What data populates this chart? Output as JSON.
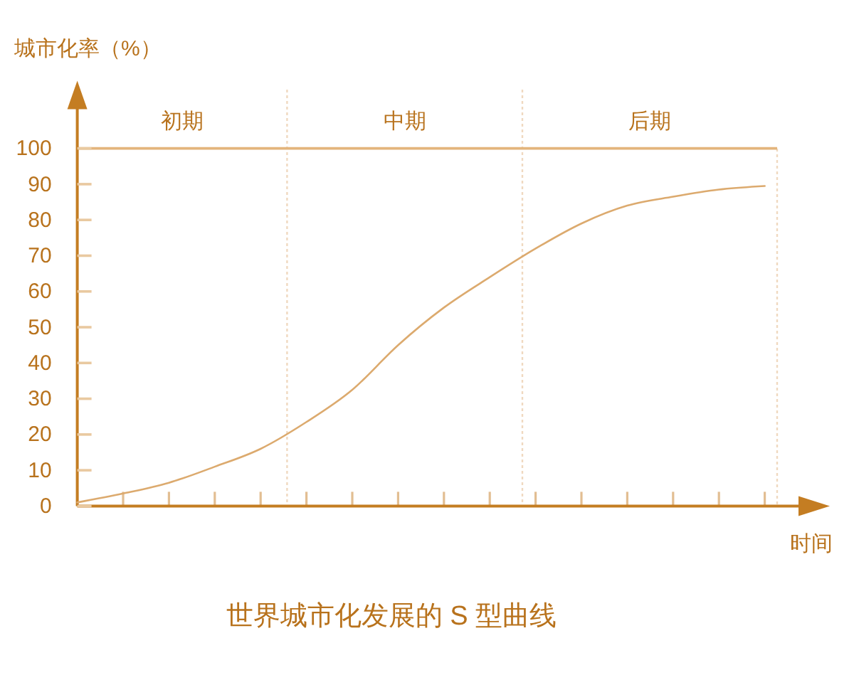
{
  "chart_data": {
    "type": "line",
    "title": "世界城市化发展的 S 型曲线",
    "xlabel": "时间",
    "ylabel": "城市化率（%）",
    "categories": [
      null,
      null,
      null,
      null,
      null,
      null,
      null,
      null,
      null,
      null,
      null,
      null,
      null,
      null,
      null,
      null
    ],
    "series": [
      {
        "color": "#dcaa6e",
        "values": [
          1,
          3.5,
          6.5,
          11,
          16,
          23.5,
          32.5,
          45,
          55.5,
          64,
          72,
          79,
          84,
          86.5,
          88.5,
          89.5
        ]
      }
    ],
    "ylim": [
      0,
      116
    ],
    "yticks": [
      0,
      10,
      20,
      30,
      40,
      50,
      60,
      70,
      80,
      90,
      100
    ],
    "tick_labels": "y",
    "line_style": "solid",
    "ref_lines": [
      {
        "axis": "y",
        "value": 100,
        "color": "#e3b57c",
        "line_style": "solid"
      }
    ],
    "annotations": [
      "初期",
      "中期",
      "后期"
    ]
  }
}
